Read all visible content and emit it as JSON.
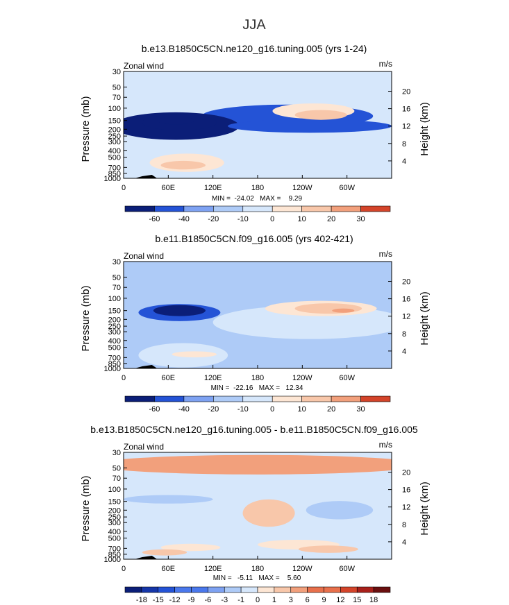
{
  "figure_title": "JJA",
  "colors": {
    "seq": [
      "#0b1e78",
      "#1536a8",
      "#2453d6",
      "#4a78ec",
      "#7ea2f2",
      "#aecbf7",
      "#d6e7fb",
      "#fde6d4",
      "#f8c7aa",
      "#f2a07c",
      "#e8704c",
      "#d4442a",
      "#a8201a",
      "#6a0f0f"
    ],
    "wet_tiny": "#000000"
  },
  "chart_data": [
    {
      "type": "contour",
      "title": "b.e13.B1850C5CN.ne120_g16.tuning.005 (yrs 1-24)",
      "left_label": "Zonal wind",
      "right_label": "m/s",
      "ylabel": "Pressure (mb)",
      "y2label": "Height (km)",
      "y_ticks": [
        "30",
        "50",
        "70",
        "100",
        "150",
        "200",
        "250",
        "300",
        "400",
        "500",
        "700",
        "850",
        "1000"
      ],
      "y2_ticks": [
        "20",
        "16",
        "12",
        "8",
        "4"
      ],
      "x_ticks": [
        "0",
        "60E",
        "120E",
        "180",
        "120W",
        "60W"
      ],
      "stats": "MIN =  -24.02   MAX =    9.29",
      "colorbar_labels": [
        "-60",
        "-40",
        "-20",
        "-10",
        "0",
        "10",
        "20",
        "30"
      ],
      "levels": [
        -60,
        -40,
        -20,
        -10,
        0,
        10,
        20,
        30
      ],
      "background_level": 0,
      "regions": [
        {
          "lon": 220,
          "p": 130,
          "rlon": 115,
          "rlogp": 0.38,
          "level": -3
        },
        {
          "lon": 70,
          "p": 180,
          "rlon": 85,
          "rlogp": 0.45,
          "level": -4
        },
        {
          "lon": 75,
          "p": 160,
          "rlon": 50,
          "rlogp": 0.26,
          "level": -5
        },
        {
          "lon": 70,
          "p": 150,
          "rlon": 25,
          "rlogp": 0.13,
          "level": -6
        },
        {
          "lon": 250,
          "p": 180,
          "rlon": 110,
          "rlogp": 0.22,
          "level": -3
        },
        {
          "lon": 255,
          "p": 110,
          "rlon": 55,
          "rlogp": 0.25,
          "level": 1
        },
        {
          "lon": 265,
          "p": 125,
          "rlon": 35,
          "rlogp": 0.16,
          "level": 2
        },
        {
          "lon": 85,
          "p": 600,
          "rlon": 50,
          "rlogp": 0.3,
          "level": 1
        },
        {
          "lon": 80,
          "p": 650,
          "rlon": 30,
          "rlogp": 0.14,
          "level": 2
        }
      ]
    },
    {
      "type": "contour",
      "title": "b.e11.B1850C5CN.f09_g16.005 (yrs 402-421)",
      "left_label": "Zonal wind",
      "right_label": "m/s",
      "ylabel": "Pressure (mb)",
      "y2label": "Height (km)",
      "y_ticks": [
        "30",
        "50",
        "70",
        "100",
        "150",
        "200",
        "250",
        "300",
        "400",
        "500",
        "700",
        "850",
        "1000"
      ],
      "y2_ticks": [
        "20",
        "16",
        "12",
        "8",
        "4"
      ],
      "x_ticks": [
        "0",
        "60E",
        "120E",
        "180",
        "120W",
        "60W"
      ],
      "stats": "MIN =  -22.16   MAX =   12.34",
      "colorbar_labels": [
        "-60",
        "-40",
        "-20",
        "-10",
        "0",
        "10",
        "20",
        "30"
      ],
      "levels": [
        -60,
        -40,
        -20,
        -10,
        0,
        10,
        20,
        30
      ],
      "background_level": -1,
      "regions": [
        {
          "lon": 250,
          "p": 220,
          "rlon": 130,
          "rlogp": 0.55,
          "level": 0
        },
        {
          "lon": 80,
          "p": 650,
          "rlon": 60,
          "rlogp": 0.4,
          "level": 0
        },
        {
          "lon": 265,
          "p": 140,
          "rlon": 75,
          "rlogp": 0.25,
          "level": 1
        },
        {
          "lon": 275,
          "p": 140,
          "rlon": 45,
          "rlogp": 0.17,
          "level": 2
        },
        {
          "lon": 295,
          "p": 150,
          "rlon": 15,
          "rlogp": 0.07,
          "level": 3
        },
        {
          "lon": 75,
          "p": 160,
          "rlon": 55,
          "rlogp": 0.28,
          "level": -3
        },
        {
          "lon": 75,
          "p": 150,
          "rlon": 35,
          "rlogp": 0.18,
          "level": -4
        },
        {
          "lon": 75,
          "p": 150,
          "rlon": 15,
          "rlogp": 0.08,
          "level": -5
        },
        {
          "lon": 95,
          "p": 630,
          "rlon": 30,
          "rlogp": 0.1,
          "level": 1
        }
      ]
    },
    {
      "type": "contour",
      "title": "b.e13.B1850C5CN.ne120_g16.tuning.005 - b.e11.B1850C5CN.f09_g16.005",
      "left_label": "Zonal wind",
      "right_label": "m/s",
      "ylabel": "Pressure (mb)",
      "y2label": "Height (km)",
      "y_ticks": [
        "30",
        "50",
        "70",
        "100",
        "150",
        "200",
        "250",
        "300",
        "400",
        "500",
        "700",
        "850",
        "1000"
      ],
      "y2_ticks": [
        "20",
        "16",
        "12",
        "8",
        "4"
      ],
      "x_ticks": [
        "0",
        "60E",
        "120E",
        "180",
        "120W",
        "60W"
      ],
      "stats": "MIN =   -5.11   MAX =    5.60",
      "colorbar_labels": [
        "-18",
        "-15",
        "-12",
        "-9",
        "-6",
        "-3",
        "-1",
        "0",
        "1",
        "3",
        "6",
        "9",
        "12",
        "15",
        "18"
      ],
      "levels": [
        -18,
        -15,
        -12,
        -9,
        -6,
        -3,
        -1,
        0,
        1,
        3,
        6,
        9,
        12,
        15,
        18
      ],
      "background_level": -1,
      "regions": [
        {
          "lon": 180,
          "p": 45,
          "rlon": 220,
          "rlogp": 0.32,
          "level": 2
        },
        {
          "lon": 195,
          "p": 220,
          "rlon": 35,
          "rlogp": 0.45,
          "level": 1
        },
        {
          "lon": 60,
          "p": 140,
          "rlon": 60,
          "rlogp": 0.14,
          "level": -2
        },
        {
          "lon": 290,
          "p": 200,
          "rlon": 45,
          "rlogp": 0.3,
          "level": -2
        },
        {
          "lon": 235,
          "p": 620,
          "rlon": 55,
          "rlogp": 0.16,
          "level": 0
        },
        {
          "lon": 275,
          "p": 720,
          "rlon": 40,
          "rlogp": 0.12,
          "level": 1
        },
        {
          "lon": 90,
          "p": 680,
          "rlon": 40,
          "rlogp": 0.12,
          "level": 0
        },
        {
          "lon": 55,
          "p": 800,
          "rlon": 30,
          "rlogp": 0.1,
          "level": 1
        }
      ]
    }
  ]
}
